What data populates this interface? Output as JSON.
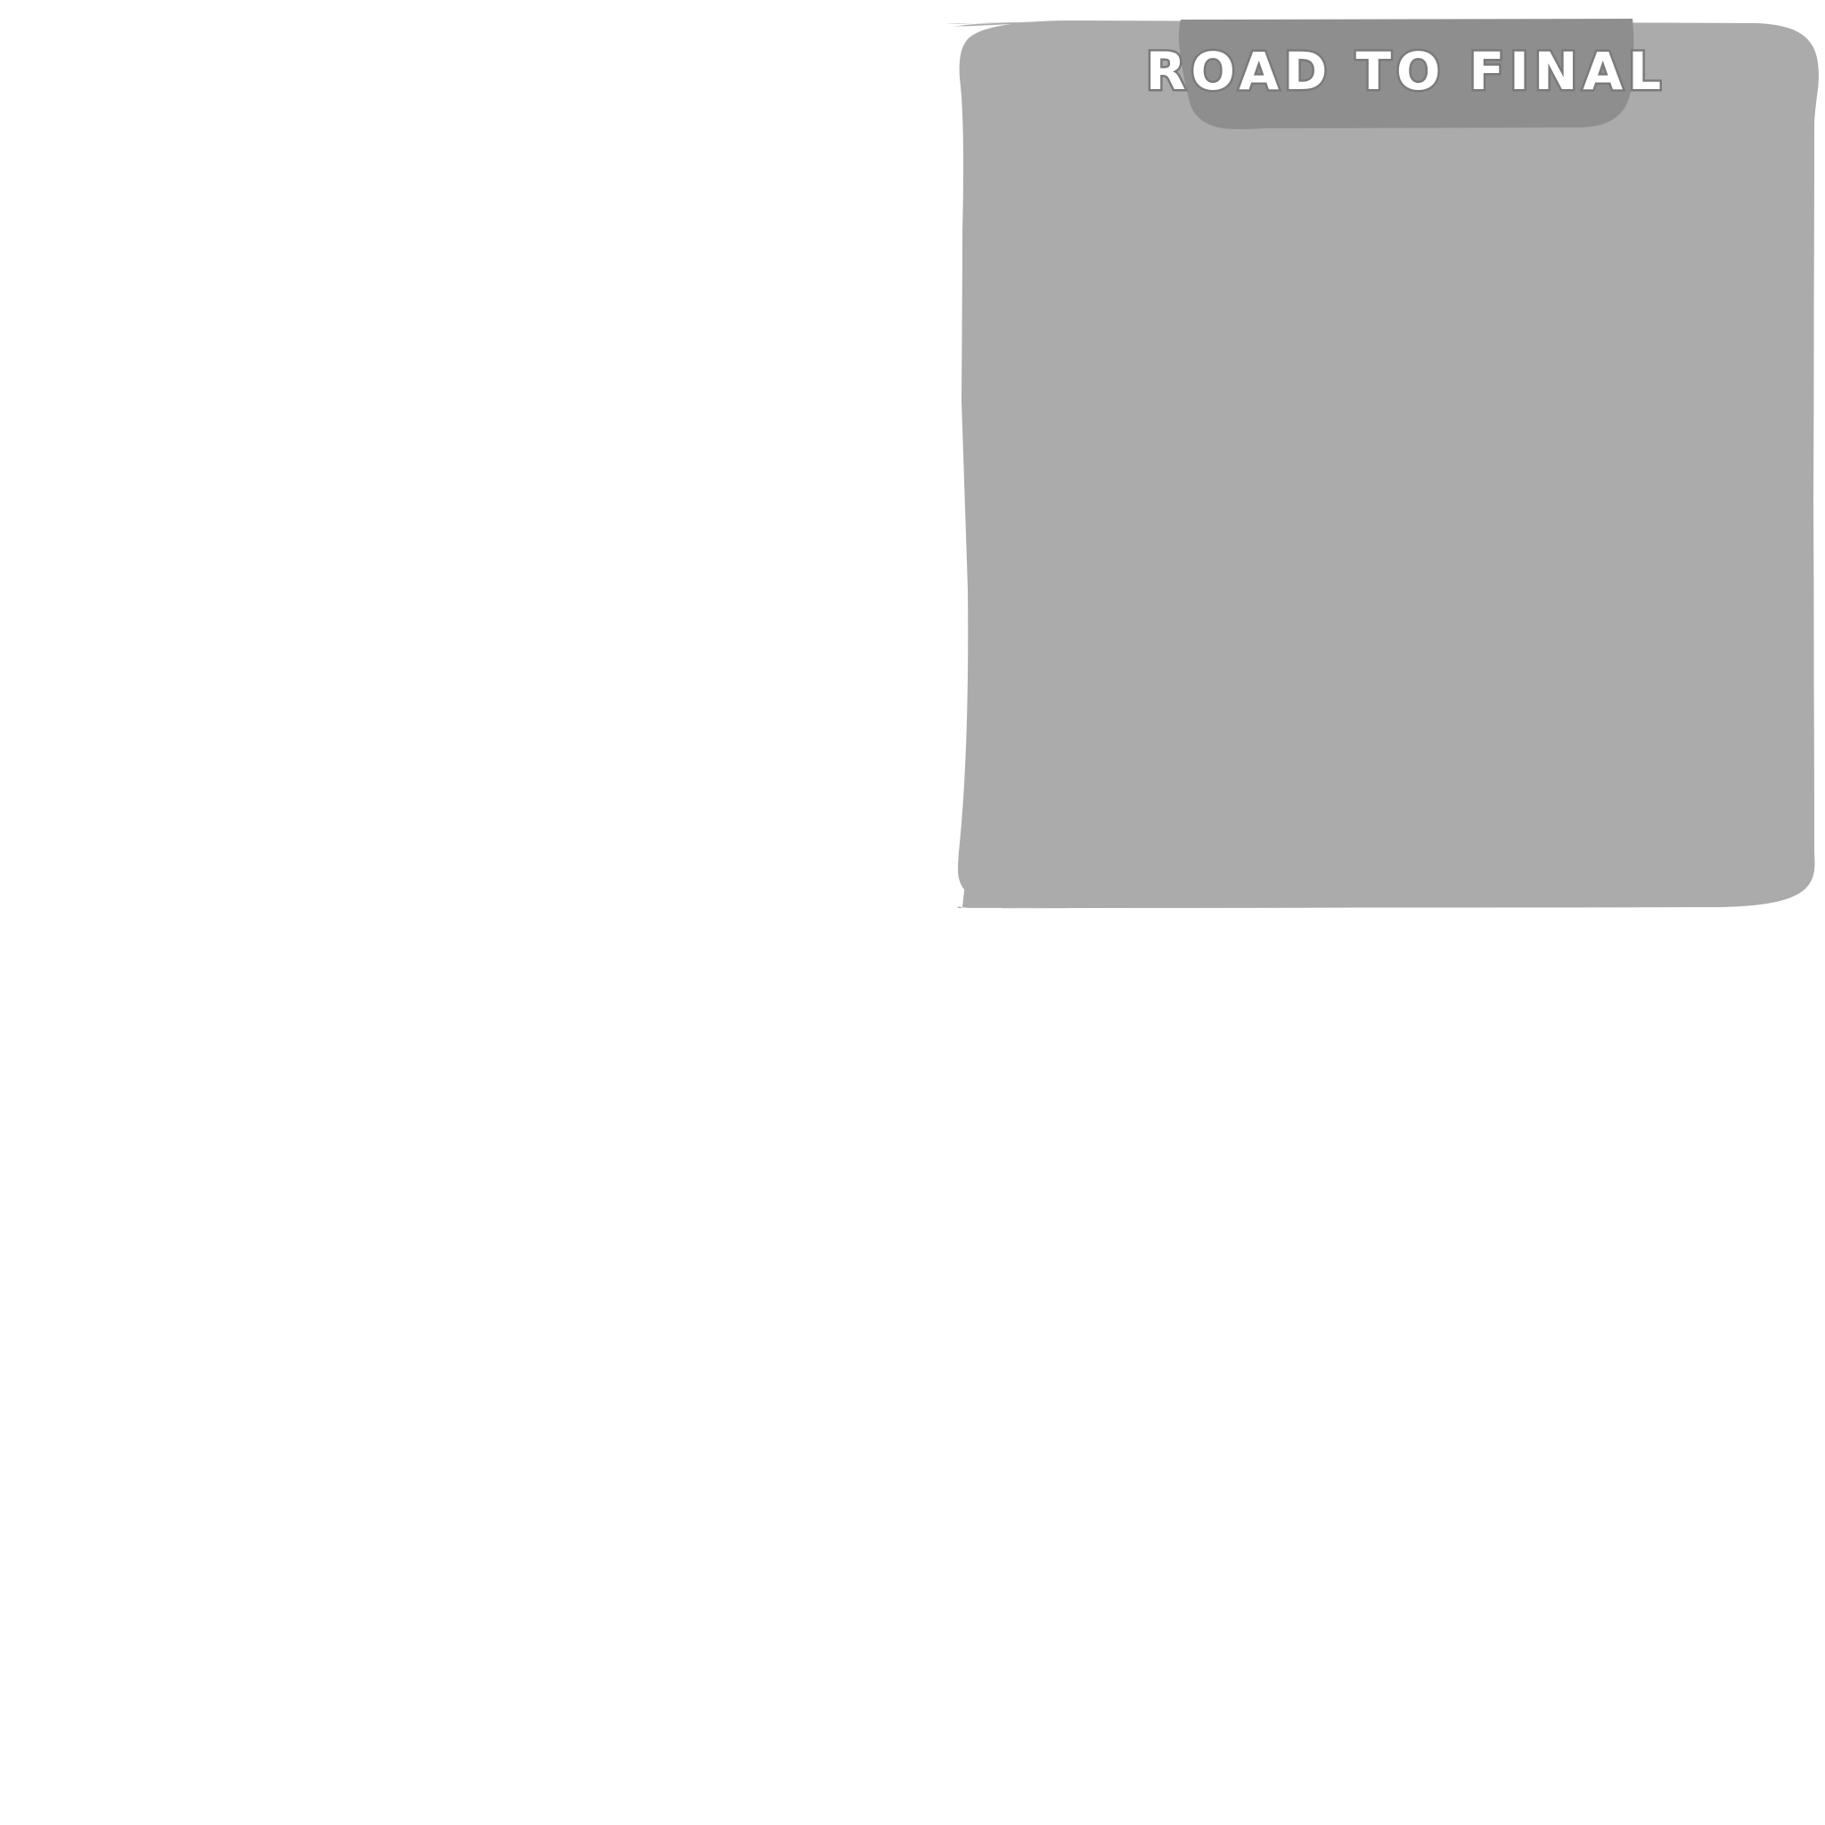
{
  "board": {
    "title": "ROAD TO FINAL",
    "panel_color": "#ABABAB",
    "tab_color": "#8E8E8E",
    "title_color": "#FFFFFF"
  }
}
